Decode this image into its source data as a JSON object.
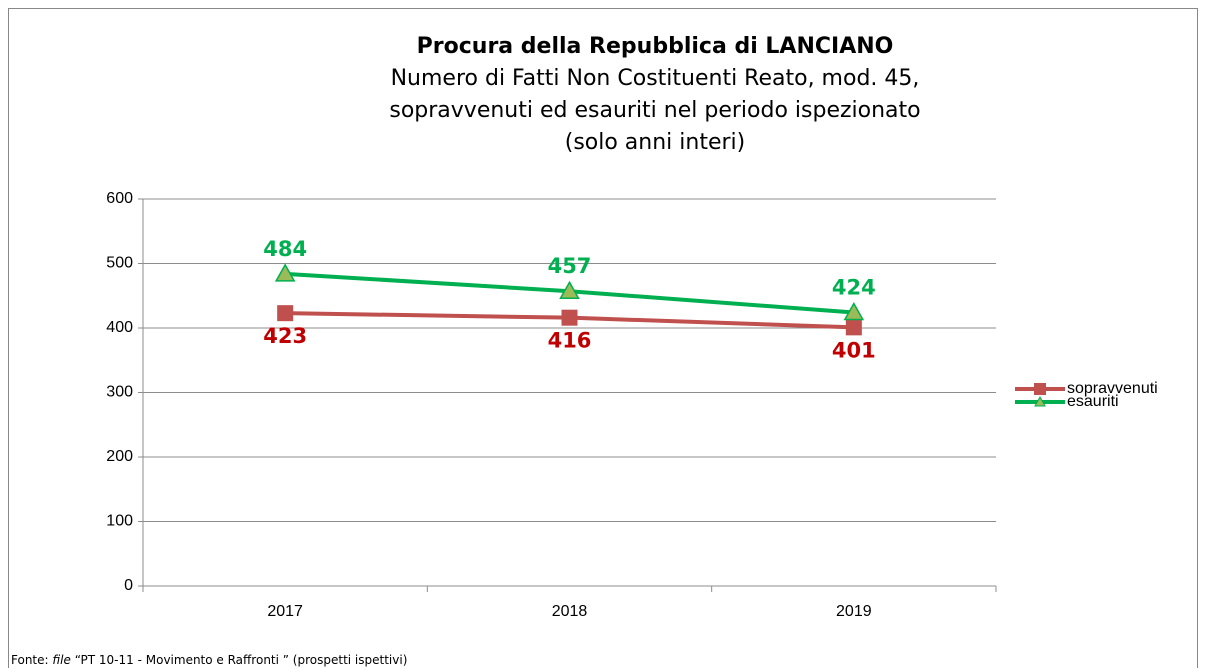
{
  "chart_data": {
    "type": "line",
    "title": "Procura della Repubblica di LANCIANO",
    "subtitle": [
      "Numero di Fatti Non Costituenti Reato, mod. 45,",
      "sopravvenuti ed esauriti nel periodo ispezionato",
      "(solo anni interi)"
    ],
    "categories": [
      "2017",
      "2018",
      "2019"
    ],
    "series": [
      {
        "name": "sopravvenuti",
        "color": "#c0504d",
        "marker": "square",
        "label_color": "#c00000",
        "label_position": "below",
        "values": [
          423,
          416,
          401
        ]
      },
      {
        "name": "esauriti",
        "color": "#00b050",
        "marker": "triangle",
        "marker_fill": "#9bbb59",
        "label_color": "#00b050",
        "label_position": "above",
        "values": [
          484,
          457,
          424
        ]
      }
    ],
    "ylim": [
      0,
      600
    ],
    "yticks": [
      0,
      100,
      200,
      300,
      400,
      500,
      600
    ],
    "grid": true,
    "legend": "right"
  },
  "source": {
    "prefix": "Fonte:",
    "emphasis": "file",
    "text": "“PT  10-11 - Movimento e Raffronti ” (prospetti ispettivi)"
  }
}
